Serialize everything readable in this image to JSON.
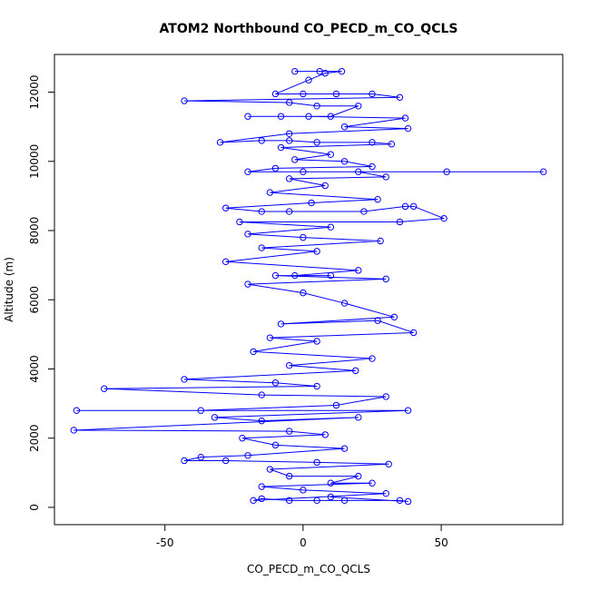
{
  "chart_data": {
    "type": "line",
    "title": "ATOM2 Northbound CO_PECD_m_CO_QCLS",
    "xlabel": "CO_PECD_m_CO_QCLS",
    "ylabel": "Altitude (m)",
    "color": "#0000ff",
    "markers": true,
    "xlim": [
      -90,
      94
    ],
    "xticks": [
      -50,
      0,
      50
    ],
    "ylim": [
      -500,
      13090
    ],
    "yticks": [
      0,
      2000,
      4000,
      6000,
      8000,
      10000,
      12000
    ],
    "x": [
      -3,
      6,
      14,
      8,
      2,
      -10,
      0,
      12,
      25,
      35,
      -43,
      -5,
      5,
      20,
      10,
      -20,
      -8,
      2,
      37,
      15,
      38,
      -5,
      -30,
      -15,
      -5,
      5,
      25,
      32,
      -8,
      10,
      -3,
      15,
      25,
      -10,
      -20,
      0,
      52,
      87,
      20,
      30,
      -5,
      8,
      -12,
      27,
      3,
      -28,
      -15,
      -5,
      22,
      37,
      40,
      51,
      35,
      -23,
      10,
      -20,
      0,
      28,
      -15,
      5,
      -28,
      20,
      -3,
      10,
      -10,
      30,
      -20,
      0,
      15,
      33,
      -8,
      27,
      40,
      -12,
      5,
      -18,
      25,
      -5,
      19,
      -43,
      -10,
      5,
      -72,
      -15,
      30,
      12,
      -37,
      -82,
      38,
      -32,
      -15,
      20,
      -83,
      -5,
      8,
      -22,
      -10,
      15,
      -20,
      -37,
      -43,
      -28,
      5,
      31,
      -12,
      -5,
      20,
      10,
      25,
      -15,
      0,
      30,
      -18,
      -15,
      -5,
      5,
      15,
      35,
      38,
      10
    ],
    "values": [
      12600,
      12600,
      12600,
      12550,
      12350,
      11950,
      11950,
      11950,
      11950,
      11850,
      11750,
      11700,
      11600,
      11600,
      11300,
      11300,
      11300,
      11300,
      11250,
      11000,
      10950,
      10800,
      10550,
      10600,
      10600,
      10550,
      10550,
      10500,
      10400,
      10200,
      10050,
      10000,
      9850,
      9800,
      9700,
      9700,
      9700,
      9700,
      9700,
      9550,
      9500,
      9300,
      9100,
      8900,
      8800,
      8650,
      8550,
      8550,
      8550,
      8700,
      8700,
      8350,
      8250,
      8250,
      8100,
      7900,
      7800,
      7700,
      7500,
      7400,
      7100,
      6850,
      6700,
      6700,
      6700,
      6600,
      6450,
      6200,
      5900,
      5500,
      5300,
      5400,
      5050,
      4900,
      4800,
      4500,
      4300,
      4100,
      3950,
      3700,
      3600,
      3500,
      3430,
      3250,
      3200,
      2950,
      2800,
      2800,
      2800,
      2600,
      2500,
      2600,
      2230,
      2200,
      2100,
      2000,
      1800,
      1700,
      1500,
      1450,
      1350,
      1350,
      1300,
      1250,
      1100,
      900,
      900,
      700,
      700,
      600,
      500,
      400,
      200,
      250,
      200,
      200,
      200,
      200,
      170,
      300
    ]
  }
}
